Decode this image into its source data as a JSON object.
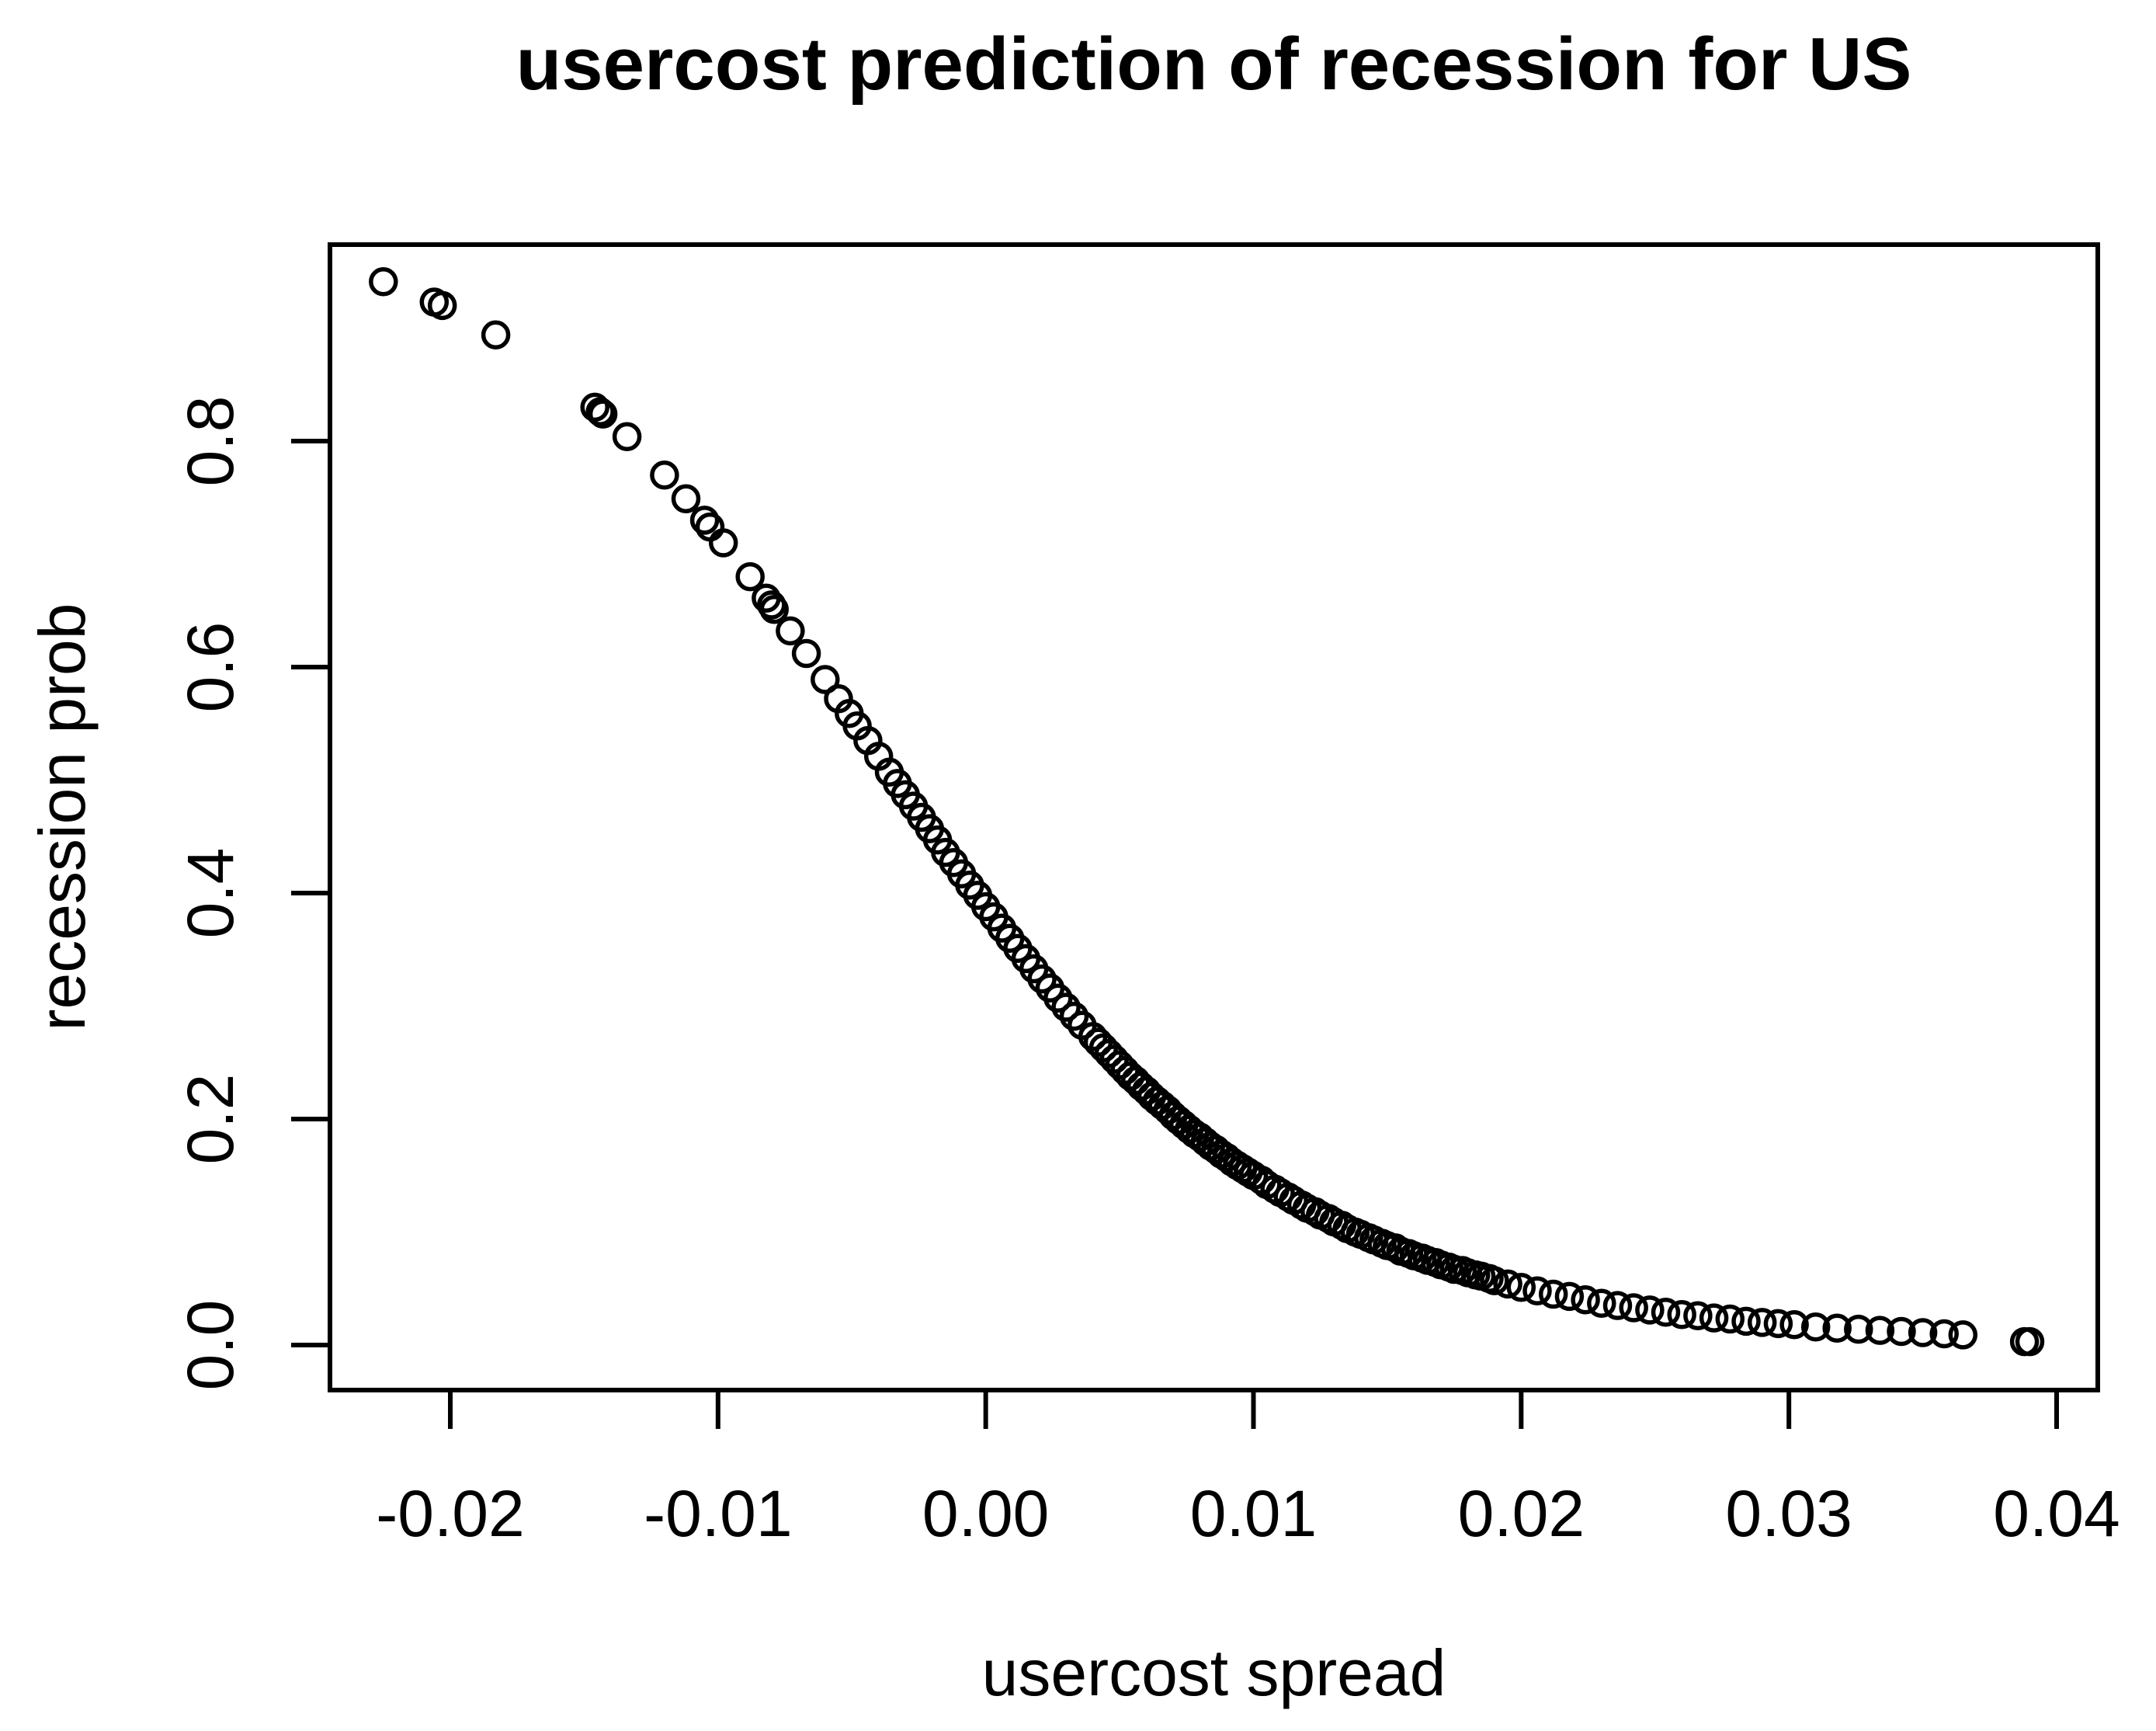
{
  "figure": {
    "background_color": "#ffffff",
    "foreground_color": "#000000"
  },
  "chart_data": {
    "type": "scatter",
    "title": "usercost prediction of recession for US",
    "xlabel": "usercost spread",
    "ylabel": "recession prob",
    "legend": "none",
    "grid": "off",
    "marker": "open-circle",
    "xlim": [
      -0.0245,
      0.0415
    ],
    "ylim": [
      -0.04,
      0.974
    ],
    "x_ticks": [
      {
        "v": -0.02,
        "label": "-0.02"
      },
      {
        "v": -0.01,
        "label": "-0.01"
      },
      {
        "v": 0.0,
        "label": "0.00"
      },
      {
        "v": 0.01,
        "label": "0.01"
      },
      {
        "v": 0.02,
        "label": "0.02"
      },
      {
        "v": 0.03,
        "label": "0.03"
      },
      {
        "v": 0.04,
        "label": "0.04"
      }
    ],
    "y_ticks": [
      {
        "v": 0.0,
        "label": "0.0"
      },
      {
        "v": 0.2,
        "label": "0.2"
      },
      {
        "v": 0.4,
        "label": "0.4"
      },
      {
        "v": 0.6,
        "label": "0.6"
      },
      {
        "v": 0.8,
        "label": "0.8"
      }
    ],
    "points": [
      [
        -0.0225,
        0.941
      ],
      [
        -0.0206,
        0.923
      ],
      [
        -0.0203,
        0.92
      ],
      [
        -0.0183,
        0.894
      ],
      [
        -0.0146,
        0.83
      ],
      [
        -0.0144,
        0.826
      ],
      [
        -0.0143,
        0.824
      ],
      [
        -0.0134,
        0.804
      ],
      [
        -0.012,
        0.77
      ],
      [
        -0.0112,
        0.749
      ],
      [
        -0.0105,
        0.73
      ],
      [
        -0.0103,
        0.724
      ],
      [
        -0.0098,
        0.71
      ],
      [
        -0.0088,
        0.68
      ],
      [
        -0.0082,
        0.661
      ],
      [
        -0.008,
        0.655
      ],
      [
        -0.0079,
        0.651
      ],
      [
        -0.0073,
        0.632
      ],
      [
        -0.0067,
        0.612
      ],
      [
        -0.006,
        0.589
      ],
      [
        -0.0055,
        0.572
      ],
      [
        -0.0051,
        0.559
      ],
      [
        -0.0048,
        0.548
      ],
      [
        -0.0044,
        0.535
      ],
      [
        -0.004,
        0.521
      ],
      [
        -0.0036,
        0.507
      ],
      [
        -0.0033,
        0.497
      ],
      [
        -0.003,
        0.487
      ],
      [
        -0.0027,
        0.477
      ],
      [
        -0.0024,
        0.467
      ],
      [
        -0.0021,
        0.457
      ],
      [
        -0.0018,
        0.447
      ],
      [
        -0.0015,
        0.436
      ],
      [
        -0.0012,
        0.427
      ],
      [
        -0.0009,
        0.417
      ],
      [
        -0.0006,
        0.407
      ],
      [
        -0.0003,
        0.398
      ],
      [
        0.0,
        0.388
      ],
      [
        0.0003,
        0.379
      ],
      [
        0.0006,
        0.369
      ],
      [
        0.0009,
        0.36
      ],
      [
        0.0012,
        0.351
      ],
      [
        0.0015,
        0.342
      ],
      [
        0.0018,
        0.333
      ],
      [
        0.0021,
        0.324
      ],
      [
        0.0024,
        0.316
      ],
      [
        0.0027,
        0.307
      ],
      [
        0.003,
        0.299
      ],
      [
        0.0033,
        0.291
      ],
      [
        0.0036,
        0.283
      ],
      [
        0.004,
        0.273
      ],
      [
        0.0042,
        0.268
      ],
      [
        0.0044,
        0.263
      ],
      [
        0.0046,
        0.258
      ],
      [
        0.0048,
        0.253
      ],
      [
        0.005,
        0.248
      ],
      [
        0.0052,
        0.243
      ],
      [
        0.0054,
        0.238
      ],
      [
        0.0056,
        0.234
      ],
      [
        0.0058,
        0.229
      ],
      [
        0.006,
        0.225
      ],
      [
        0.0062,
        0.22
      ],
      [
        0.0064,
        0.216
      ],
      [
        0.0066,
        0.212
      ],
      [
        0.0068,
        0.208
      ],
      [
        0.007,
        0.203
      ],
      [
        0.0072,
        0.199
      ],
      [
        0.0074,
        0.195
      ],
      [
        0.0076,
        0.191
      ],
      [
        0.0078,
        0.187
      ],
      [
        0.008,
        0.184
      ],
      [
        0.0082,
        0.18
      ],
      [
        0.0084,
        0.176
      ],
      [
        0.0086,
        0.173
      ],
      [
        0.0088,
        0.169
      ],
      [
        0.009,
        0.166
      ],
      [
        0.0092,
        0.162
      ],
      [
        0.0094,
        0.159
      ],
      [
        0.0096,
        0.156
      ],
      [
        0.0098,
        0.153
      ],
      [
        0.01,
        0.15
      ],
      [
        0.0103,
        0.146
      ],
      [
        0.0105,
        0.142
      ],
      [
        0.0108,
        0.138
      ],
      [
        0.011,
        0.135
      ],
      [
        0.0113,
        0.131
      ],
      [
        0.0115,
        0.128
      ],
      [
        0.0118,
        0.124
      ],
      [
        0.012,
        0.121
      ],
      [
        0.0123,
        0.118
      ],
      [
        0.0125,
        0.115
      ],
      [
        0.0128,
        0.112
      ],
      [
        0.013,
        0.109
      ],
      [
        0.0133,
        0.106
      ],
      [
        0.0135,
        0.103
      ],
      [
        0.0138,
        0.1
      ],
      [
        0.014,
        0.098
      ],
      [
        0.0143,
        0.095
      ],
      [
        0.0145,
        0.093
      ],
      [
        0.0148,
        0.09
      ],
      [
        0.015,
        0.088
      ],
      [
        0.0153,
        0.086
      ],
      [
        0.0155,
        0.083
      ],
      [
        0.0158,
        0.081
      ],
      [
        0.016,
        0.079
      ],
      [
        0.0163,
        0.077
      ],
      [
        0.0165,
        0.075
      ],
      [
        0.0168,
        0.073
      ],
      [
        0.017,
        0.071
      ],
      [
        0.0173,
        0.069
      ],
      [
        0.0175,
        0.067
      ],
      [
        0.0178,
        0.066
      ],
      [
        0.018,
        0.064
      ],
      [
        0.0183,
        0.062
      ],
      [
        0.0185,
        0.061
      ],
      [
        0.0188,
        0.059
      ],
      [
        0.019,
        0.057
      ],
      [
        0.0195,
        0.054
      ],
      [
        0.02,
        0.051
      ],
      [
        0.0206,
        0.048
      ],
      [
        0.0212,
        0.045
      ],
      [
        0.0218,
        0.043
      ],
      [
        0.0224,
        0.04
      ],
      [
        0.023,
        0.037
      ],
      [
        0.0236,
        0.035
      ],
      [
        0.0242,
        0.033
      ],
      [
        0.0248,
        0.031
      ],
      [
        0.0254,
        0.029
      ],
      [
        0.026,
        0.027
      ],
      [
        0.0266,
        0.026
      ],
      [
        0.0272,
        0.024
      ],
      [
        0.0278,
        0.023
      ],
      [
        0.0284,
        0.021
      ],
      [
        0.029,
        0.02
      ],
      [
        0.0296,
        0.019
      ],
      [
        0.0302,
        0.018
      ],
      [
        0.031,
        0.016
      ],
      [
        0.0318,
        0.015
      ],
      [
        0.0326,
        0.014
      ],
      [
        0.0334,
        0.013
      ],
      [
        0.0342,
        0.012
      ],
      [
        0.035,
        0.011
      ],
      [
        0.0358,
        0.01
      ],
      [
        0.0365,
        0.009
      ],
      [
        0.0388,
        0.003
      ],
      [
        0.039,
        0.003
      ]
    ]
  }
}
